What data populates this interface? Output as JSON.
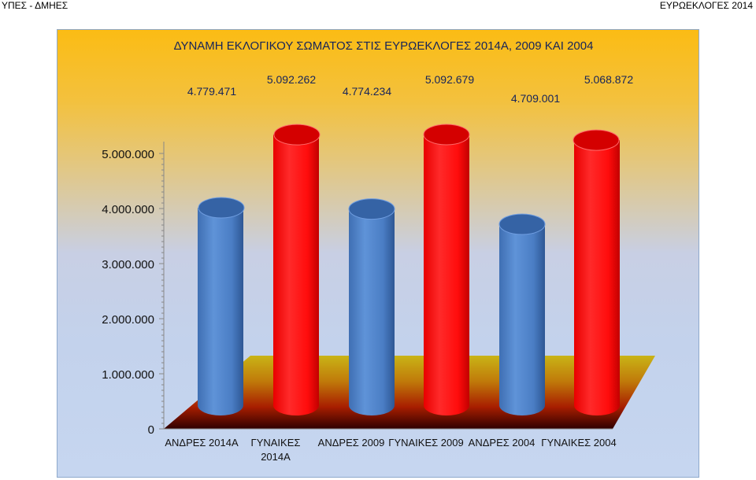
{
  "header": {
    "left": "ΥΠΕΣ - ΔΜΗΕΣ",
    "right": "ΕΥΡΩΕΚΛΟΓΕΣ 2014"
  },
  "colors": {
    "men": "#4a7dc4",
    "women": "#ff1010"
  },
  "chart_data": {
    "type": "bar",
    "title": "ΔΥΝΑΜΗ ΕΚΛΟΓΙΚΟΥ ΣΩΜΑΤΟΣ ΣΤΙΣ ΕΥΡΩΕΚΛΟΓΕΣ 2014Α, 2009 ΚΑΙ  2004",
    "categories": [
      [
        "ΑΝΔΡΕΣ 2014Α"
      ],
      [
        "ΓΥΝΑΙΚΕΣ",
        "2014Α"
      ],
      [
        "ΑΝΔΡΕΣ 2009"
      ],
      [
        "ΓΥΝΑΙΚΕΣ 2009"
      ],
      [
        "ΑΝΔΡΕΣ 2004"
      ],
      [
        "ΓΥΝΑΙΚΕΣ 2004"
      ]
    ],
    "values": [
      4779471,
      5092262,
      4774234,
      5092679,
      4709001,
      5068872
    ],
    "value_labels": [
      "4.779.471",
      "5.092.262",
      "4.774.234",
      "5.092.679",
      "4.709.001",
      "5.068.872"
    ],
    "bar_colors": [
      "men",
      "women",
      "men",
      "women",
      "men",
      "women"
    ],
    "ylim": [
      0,
      5000000
    ],
    "yticks": [
      {
        "value": 0,
        "label": "0"
      },
      {
        "value": 1000000,
        "label": "1.000.000"
      },
      {
        "value": 2000000,
        "label": "2.000.000"
      },
      {
        "value": 3000000,
        "label": "3.000.000"
      },
      {
        "value": 4000000,
        "label": "4.000.000"
      },
      {
        "value": 5000000,
        "label": "5.000.000"
      }
    ],
    "style": "3d-cylinder"
  }
}
